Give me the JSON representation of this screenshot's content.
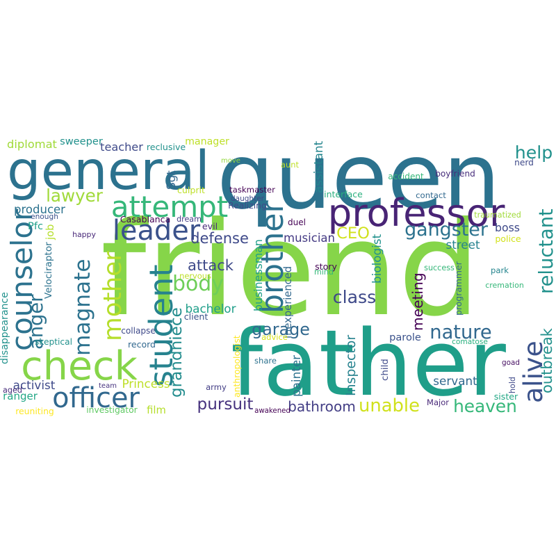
{
  "words": [
    {
      "text": "friend",
      "color": "#86d549"
    },
    {
      "text": "father",
      "color": "#1f9e89"
    },
    {
      "text": "queen",
      "color": "#2c728e"
    },
    {
      "text": "general",
      "color": "#2c728e"
    },
    {
      "text": "professor",
      "color": "#482475"
    },
    {
      "text": "check",
      "color": "#86d549"
    },
    {
      "text": "officer",
      "color": "#31688e"
    },
    {
      "text": "attempt",
      "color": "#35b779"
    },
    {
      "text": "leader",
      "color": "#3b528b"
    },
    {
      "text": "counselor",
      "color": "#2c728e"
    },
    {
      "text": "magnate",
      "color": "#2c728e"
    },
    {
      "text": "mother",
      "color": "#b5de2b"
    },
    {
      "text": "body",
      "color": "#6ece58"
    },
    {
      "text": "student",
      "color": "#26828e"
    },
    {
      "text": "brother",
      "color": "#2c728e"
    },
    {
      "text": "alive",
      "color": "#3b528b"
    },
    {
      "text": "reluctant",
      "color": "#21918c"
    },
    {
      "text": "outbreak",
      "color": "#21918c"
    },
    {
      "text": "help",
      "color": "#21918c"
    },
    {
      "text": "gangster",
      "color": "#2c728e"
    },
    {
      "text": "lawyer",
      "color": "#a0da39"
    },
    {
      "text": "CEO",
      "color": "#d0e11c"
    },
    {
      "text": "anger",
      "color": "#2c728e"
    },
    {
      "text": "grandniece",
      "color": "#228c8d"
    },
    {
      "text": "meeting",
      "color": "#440154"
    },
    {
      "text": "class",
      "color": "#3e4989"
    },
    {
      "text": "garage",
      "color": "#31688e"
    },
    {
      "text": "nature",
      "color": "#31688e"
    },
    {
      "text": "heaven",
      "color": "#35b779"
    },
    {
      "text": "unable",
      "color": "#d0e11c"
    },
    {
      "text": "bathroom",
      "color": "#433e85"
    },
    {
      "text": "pursuit",
      "color": "#46327e"
    },
    {
      "text": "defense",
      "color": "#3e4989"
    },
    {
      "text": "attack",
      "color": "#3e4989"
    },
    {
      "text": "musician",
      "color": "#443a83"
    },
    {
      "text": "diplomat",
      "color": "#a0da39"
    },
    {
      "text": "sweeper",
      "color": "#21918c"
    },
    {
      "text": "teacher",
      "color": "#3e4989"
    },
    {
      "text": "manager",
      "color": "#bddf26"
    },
    {
      "text": "producer",
      "color": "#2c728e"
    },
    {
      "text": "Pfc",
      "color": "#1f9e89"
    },
    {
      "text": "activist",
      "color": "#3e4989"
    },
    {
      "text": "ranger",
      "color": "#22a785"
    },
    {
      "text": "Princess",
      "color": "#bddf26"
    },
    {
      "text": "film",
      "color": "#b5de2b"
    },
    {
      "text": "servant",
      "color": "#31688e"
    },
    {
      "text": "park",
      "color": "#25858e"
    },
    {
      "text": "boss",
      "color": "#3e4989"
    },
    {
      "text": "street",
      "color": "#26828e"
    },
    {
      "text": "parole",
      "color": "#3b528b"
    },
    {
      "text": "bachelor",
      "color": "#1f9e89"
    },
    {
      "text": "businessman",
      "color": "#1f9e89"
    },
    {
      "text": "Inspector",
      "color": "#26828e"
    },
    {
      "text": "painter",
      "color": "#2c728e"
    },
    {
      "text": "biologist",
      "color": "#21918c"
    },
    {
      "text": "programmer",
      "color": "#31688e"
    },
    {
      "text": "assistant",
      "color": "#25858e"
    },
    {
      "text": "Sgt",
      "color": "#31688e"
    },
    {
      "text": "reclusive",
      "color": "#21918c"
    },
    {
      "text": "move",
      "color": "#95d840"
    },
    {
      "text": "aunt",
      "color": "#bddf26"
    },
    {
      "text": "nerd",
      "color": "#3e4989"
    },
    {
      "text": "boyfriend",
      "color": "#472d7b"
    },
    {
      "text": "accident",
      "color": "#35b779"
    },
    {
      "text": "taskmaster",
      "color": "#440154"
    },
    {
      "text": "culprit",
      "color": "#bddf26"
    },
    {
      "text": "interface",
      "color": "#2ab07f"
    },
    {
      "text": "traumatized",
      "color": "#a0da39"
    },
    {
      "text": "daughter",
      "color": "#3e4989"
    },
    {
      "text": "Realizing",
      "color": "#3e4989"
    },
    {
      "text": "dream",
      "color": "#433e85"
    },
    {
      "text": "evil",
      "color": "#482878"
    },
    {
      "text": "duel",
      "color": "#440154"
    },
    {
      "text": "police",
      "color": "#d2e21b"
    },
    {
      "text": "happy",
      "color": "#482878"
    },
    {
      "text": "job",
      "color": "#b5de2b"
    },
    {
      "text": "Velociraptor",
      "color": "#2c728e"
    },
    {
      "text": "enough",
      "color": "#3b528b"
    },
    {
      "text": "nervous",
      "color": "#bddf26"
    },
    {
      "text": "story",
      "color": "#440154"
    },
    {
      "text": "mind",
      "color": "#35b779"
    },
    {
      "text": "success",
      "color": "#35b779"
    },
    {
      "text": "cremation",
      "color": "#35b779"
    },
    {
      "text": "inexperienced",
      "color": "#31688e"
    },
    {
      "text": "disappearance",
      "color": "#21918c"
    },
    {
      "text": "collapse",
      "color": "#3e4989"
    },
    {
      "text": "client",
      "color": "#3b528b"
    },
    {
      "text": "record",
      "color": "#31688e"
    },
    {
      "text": "skeptical",
      "color": "#21918c"
    },
    {
      "text": "advice",
      "color": "#d8e219"
    },
    {
      "text": "comatose",
      "color": "#2ab07f"
    },
    {
      "text": "anthropologist",
      "color": "#fde725"
    },
    {
      "text": "share",
      "color": "#2c728e"
    },
    {
      "text": "child",
      "color": "#3e4989"
    },
    {
      "text": "goad",
      "color": "#471063"
    },
    {
      "text": "hold",
      "color": "#3e4989"
    },
    {
      "text": "sister",
      "color": "#22a785"
    },
    {
      "text": "aged",
      "color": "#472d7b"
    },
    {
      "text": "team",
      "color": "#46327e"
    },
    {
      "text": "army",
      "color": "#433e85"
    },
    {
      "text": "Casablanca",
      "color": "#440154"
    },
    {
      "text": "reuniting",
      "color": "#fde725"
    },
    {
      "text": "investigator",
      "color": "#5ec962"
    },
    {
      "text": "awakened",
      "color": "#440154"
    },
    {
      "text": "Major",
      "color": "#482878"
    },
    {
      "text": "contact",
      "color": "#31688e"
    }
  ]
}
